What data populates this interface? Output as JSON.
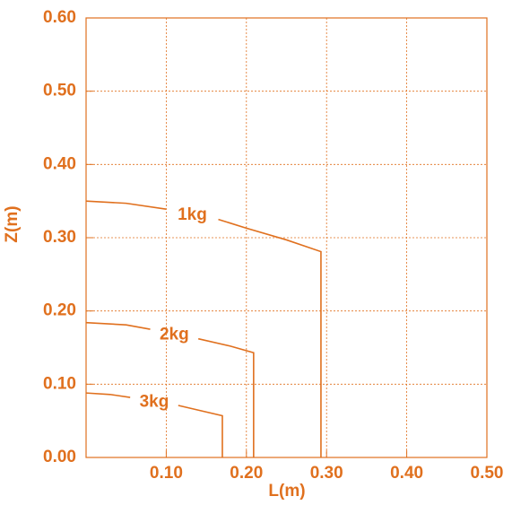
{
  "chart_data": {
    "type": "contour",
    "xlabel": "L(m)",
    "ylabel": "Z(m)",
    "xlim": [
      0,
      0.5
    ],
    "ylim": [
      0,
      0.6
    ],
    "xticks": [
      {
        "value": 0.1,
        "label": "0.10"
      },
      {
        "value": 0.2,
        "label": "0.20"
      },
      {
        "value": 0.3,
        "label": "0.30"
      },
      {
        "value": 0.4,
        "label": "0.40"
      },
      {
        "value": 0.5,
        "label": "0.50"
      }
    ],
    "yticks": [
      {
        "value": 0,
        "label": "0.00"
      },
      {
        "value": 0.1,
        "label": "0.10"
      },
      {
        "value": 0.2,
        "label": "0.20"
      },
      {
        "value": 0.3,
        "label": "0.30"
      },
      {
        "value": 0.4,
        "label": "0.40"
      },
      {
        "value": 0.5,
        "label": "0.50"
      },
      {
        "value": 0.6,
        "label": "0.60"
      }
    ],
    "grid": true,
    "color": "#e0701e",
    "series": [
      {
        "name": "1kg",
        "x": [
          0,
          0.05,
          0.1,
          null,
          0.165,
          0.2,
          0.25,
          0.293,
          0.293
        ],
        "values": [
          0.35,
          0.347,
          0.339,
          null,
          0.325,
          0.313,
          0.297,
          0.281,
          0
        ]
      },
      {
        "name": "2kg",
        "x": [
          0,
          0.05,
          0.08,
          null,
          0.14,
          0.18,
          0.209,
          0.209
        ],
        "values": [
          0.184,
          0.181,
          0.175,
          null,
          0.162,
          0.152,
          0.143,
          0
        ]
      },
      {
        "name": "3kg",
        "x": [
          0,
          0.03,
          0.055,
          null,
          0.115,
          0.17,
          0.17
        ],
        "values": [
          0.088,
          0.086,
          0.082,
          null,
          0.071,
          0.057,
          0
        ]
      }
    ]
  }
}
